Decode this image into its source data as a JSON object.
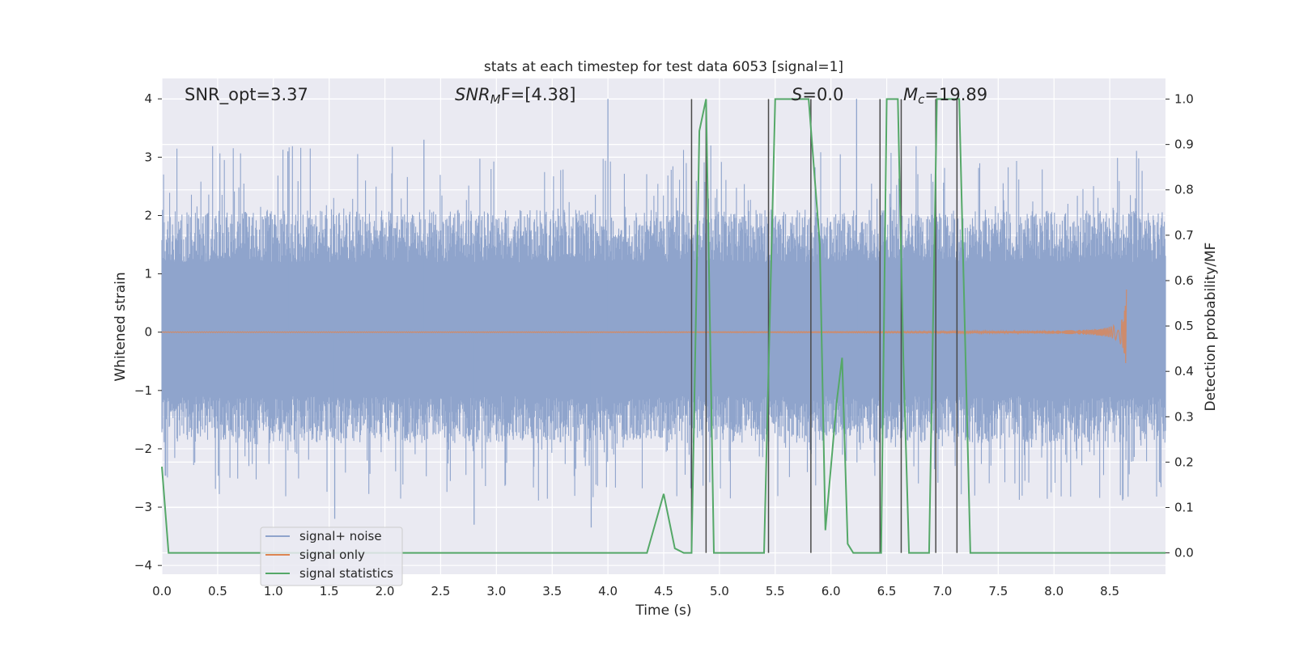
{
  "chart_data": {
    "type": "line",
    "title": "stats at each timestep for test data 6053 [signal=1]",
    "xlabel": "Time (s)",
    "ylabel_left": "Whitened strain",
    "ylabel_right": "Detection probability/MF",
    "xlim": [
      0.0,
      9.0
    ],
    "ylim_left": [
      -4.15,
      4.35
    ],
    "ylim_right": [
      -0.047,
      1.0455
    ],
    "xticks": [
      0.0,
      0.5,
      1.0,
      1.5,
      2.0,
      2.5,
      3.0,
      3.5,
      4.0,
      4.5,
      5.0,
      5.5,
      6.0,
      6.5,
      7.0,
      7.5,
      8.0,
      8.5
    ],
    "xtick_labels": [
      "0.0",
      "0.5",
      "1.0",
      "1.5",
      "2.0",
      "2.5",
      "3.0",
      "3.5",
      "4.0",
      "4.5",
      "5.0",
      "5.5",
      "6.0",
      "6.5",
      "7.0",
      "7.5",
      "8.0",
      "8.5"
    ],
    "yticks_left": [
      4,
      3,
      2,
      1,
      0,
      -1,
      -2,
      -3,
      -4
    ],
    "ytick_labels_left": [
      "4",
      "3",
      "2",
      "1",
      "0",
      "−1",
      "−2",
      "−3",
      "−4"
    ],
    "yticks_right": [
      1.0,
      0.9,
      0.8,
      0.7,
      0.6,
      0.5,
      0.4,
      0.3,
      0.2,
      0.1,
      0.0
    ],
    "ytick_labels_right": [
      "1.0",
      "0.9",
      "0.8",
      "0.7",
      "0.6",
      "0.5",
      "0.4",
      "0.3",
      "0.2",
      "0.1",
      "0.0"
    ],
    "grid": true,
    "background": "#eaeaf2",
    "annotations": {
      "snr_opt": "SNR_opt=3.37",
      "snr_mf_main": "SNR",
      "snr_mf_sub": "M",
      "snr_mf_rest": "F=[4.38]",
      "s_italic": "S",
      "s_rest": "=0.0",
      "mc_main": "M",
      "mc_sub": "c",
      "mc_rest": "=19.89"
    },
    "legend": {
      "placement": "lower-left",
      "entries": [
        "signal+ noise",
        "signal only",
        "signal statistics"
      ]
    },
    "colors": {
      "noise": "#8fa4cc",
      "signal": "#dd8452",
      "stats": "#55a868",
      "vlines": "#4a4a4a"
    },
    "series": [
      {
        "name": "signal+ noise",
        "description_axis": "left",
        "x_range": [
          0.0,
          9.0
        ],
        "band_core": [
          -0.7,
          0.9
        ],
        "typical_envelope": [
          -2.0,
          2.0
        ],
        "peak_max": 4.0,
        "peak_min": -3.4
      },
      {
        "name": "signal only",
        "description_axis": "left",
        "x_range": [
          0.0,
          8.65
        ],
        "envelope_start": 0.005,
        "envelope_peak": 0.75,
        "merger_time": 8.65
      },
      {
        "name": "signal statistics",
        "description_axis": "right",
        "x": [
          0.0,
          0.06,
          0.12,
          0.2,
          0.5,
          1.0,
          2.0,
          3.0,
          4.0,
          4.35,
          4.5,
          4.6,
          4.68,
          4.75,
          4.82,
          4.88,
          4.95,
          5.0,
          5.3,
          5.4,
          5.5,
          5.8,
          5.9,
          5.95,
          6.05,
          6.1,
          6.15,
          6.2,
          6.3,
          6.45,
          6.5,
          6.55,
          6.6,
          6.65,
          6.7,
          6.75,
          6.82,
          6.88,
          6.95,
          7.0,
          7.05,
          7.15,
          7.25,
          7.3,
          7.5,
          8.0,
          8.5,
          9.0
        ],
        "y": [
          0.19,
          0.0,
          0.0,
          0.0,
          0.0,
          0.0,
          0.0,
          0.0,
          0.0,
          0.0,
          0.13,
          0.01,
          0.0,
          0.0,
          0.93,
          1.0,
          0.0,
          0.0,
          0.0,
          0.0,
          1.0,
          1.0,
          0.68,
          0.05,
          0.33,
          0.43,
          0.02,
          0.0,
          0.0,
          0.0,
          1.0,
          1.0,
          1.0,
          0.42,
          0.0,
          0.0,
          0.0,
          0.0,
          1.0,
          1.0,
          1.0,
          1.0,
          0.0,
          0.0,
          0.0,
          0.0,
          0.0,
          0.0
        ]
      }
    ],
    "vlines": [
      4.75,
      4.88,
      5.44,
      5.82,
      6.44,
      6.63,
      6.94,
      7.13
    ],
    "vline_range_right": [
      0.0,
      1.0
    ]
  }
}
